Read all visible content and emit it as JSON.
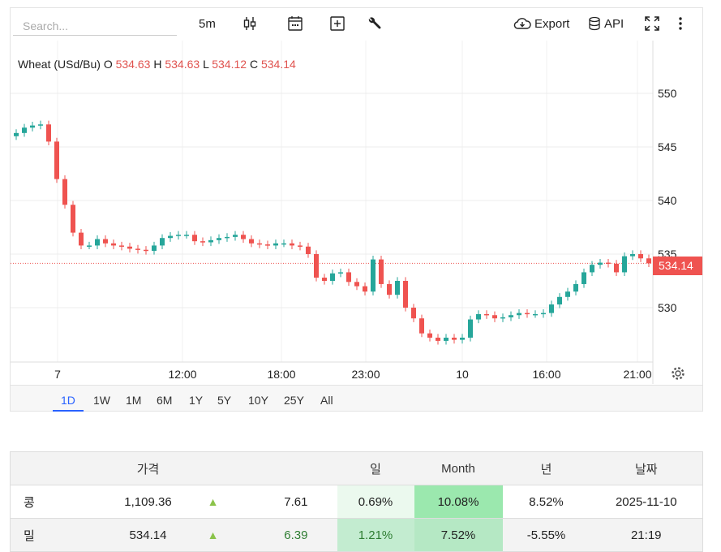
{
  "toolbar": {
    "search_placeholder": "Search...",
    "interval": "5m",
    "export_label": "Export",
    "api_label": "API"
  },
  "legend": {
    "symbol": "Wheat (USd/Bu)",
    "o_label": "O",
    "o": "534.63",
    "h_label": "H",
    "h": "534.63",
    "l_label": "L",
    "l": "534.12",
    "c_label": "C",
    "c": "534.14"
  },
  "colors": {
    "up": "#26a69a",
    "down": "#ef5350",
    "active_tab": "#2962ff"
  },
  "chart_data": {
    "type": "candlestick",
    "interval": "5m",
    "y_ticks": [
      "550",
      "545",
      "540",
      "535",
      "530"
    ],
    "ylim": [
      525.5,
      553.5
    ],
    "x_ticks": [
      "7",
      "12:00",
      "18:00",
      "23:00",
      "10",
      "16:00",
      "21:00"
    ],
    "last_price": "534.14",
    "closes": [
      546.3,
      546.8,
      547.0,
      547.1,
      545.5,
      542,
      539.6,
      537,
      535.8,
      535.8,
      536.4,
      536,
      535.8,
      535.7,
      535.5,
      535.4,
      535.3,
      535.8,
      536.5,
      536.7,
      536.8,
      536.8,
      536.2,
      536.1,
      536.3,
      536.5,
      536.6,
      536.8,
      536.4,
      536,
      535.9,
      535.8,
      536,
      536,
      535.8,
      535.7,
      535,
      532.8,
      532.5,
      533.2,
      533.3,
      532.4,
      532,
      531.5,
      534.5,
      532.2,
      531.2,
      532.5,
      530,
      529,
      527.6,
      527.2,
      526.9,
      527.2,
      527,
      527.2,
      528.9,
      529.4,
      529.3,
      529,
      529.1,
      529.3,
      529.5,
      529.4,
      529.4,
      529.5,
      530.3,
      531,
      531.5,
      532.2,
      533.3,
      534,
      534.2,
      534.1,
      533.3,
      534.8,
      535,
      534.6,
      534.14
    ]
  },
  "ranges": [
    "1D",
    "1W",
    "1M",
    "6M",
    "1Y",
    "5Y",
    "10Y",
    "25Y",
    "All"
  ],
  "active_range": "1D",
  "table": {
    "headers": [
      "",
      "가격",
      "",
      "",
      "일",
      "Month",
      "년",
      "날짜"
    ],
    "rows": [
      {
        "name": "콩",
        "price": "1,109.36",
        "arrow": "▲",
        "change": "7.61",
        "day": "0.69%",
        "month": "10.08%",
        "year": "8.52%",
        "date": "2025-11-10"
      },
      {
        "name": "밀",
        "price": "534.14",
        "arrow": "▲",
        "change": "6.39",
        "day": "1.21%",
        "month": "7.52%",
        "year": "-5.55%",
        "date": "21:19"
      }
    ]
  }
}
